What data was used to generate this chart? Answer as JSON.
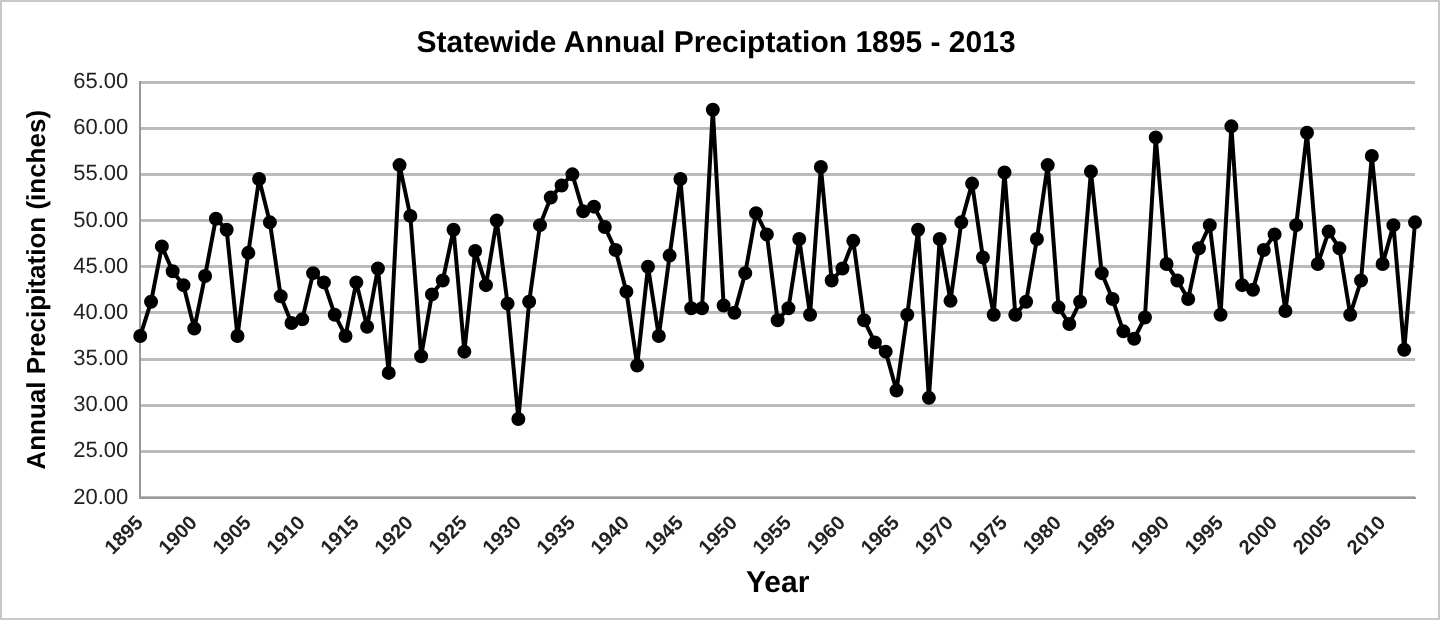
{
  "chart_data": {
    "type": "line",
    "title": "Statewide Annual Preciptation 1895 - 2013",
    "xlabel": "Year",
    "ylabel": "Annual Precipitation (inches)",
    "categories": [
      "1895",
      null,
      null,
      null,
      null,
      "1900",
      null,
      null,
      null,
      null,
      "1905",
      null,
      null,
      null,
      null,
      "1910",
      null,
      null,
      null,
      null,
      "1915",
      null,
      null,
      null,
      null,
      "1920",
      null,
      null,
      null,
      null,
      "1925",
      null,
      null,
      null,
      null,
      "1930",
      null,
      null,
      null,
      null,
      "1935",
      null,
      null,
      null,
      null,
      "1940",
      null,
      null,
      null,
      null,
      "1945",
      null,
      null,
      null,
      null,
      "1950",
      null,
      null,
      null,
      null,
      "1955",
      null,
      null,
      null,
      null,
      "1960",
      null,
      null,
      null,
      null,
      "1965",
      null,
      null,
      null,
      null,
      "1970",
      null,
      null,
      null,
      null,
      "1975",
      null,
      null,
      null,
      null,
      "1980",
      null,
      null,
      null,
      null,
      "1985",
      null,
      null,
      null,
      null,
      "1990",
      null,
      null,
      null,
      null,
      "1995",
      null,
      null,
      null,
      null,
      "2000",
      null,
      null,
      null,
      null,
      "2005",
      null,
      null,
      null,
      null,
      "2010",
      null,
      null,
      null
    ],
    "series": [
      {
        "color": "#000000",
        "values": [
          37.5,
          41.2,
          47.2,
          44.5,
          43,
          38.3,
          44,
          50.2,
          49,
          37.5,
          46.5,
          54.5,
          49.8,
          41.8,
          38.9,
          39.3,
          44.3,
          43.3,
          39.8,
          37.5,
          43.3,
          38.5,
          44.8,
          33.5,
          56,
          50.5,
          35.3,
          42,
          43.5,
          49,
          35.8,
          46.7,
          43,
          50,
          41,
          28.5,
          41.2,
          49.5,
          52.5,
          53.8,
          55,
          51,
          51.5,
          49.3,
          46.8,
          42.3,
          34.3,
          45,
          37.5,
          46.2,
          54.5,
          40.5,
          40.5,
          62,
          40.8,
          40,
          44.3,
          50.8,
          48.5,
          39.2,
          40.5,
          48,
          39.8,
          55.8,
          43.5,
          44.8,
          47.8,
          39.2,
          36.8,
          35.8,
          31.6,
          39.8,
          49,
          30.8,
          48,
          41.3,
          49.8,
          54,
          46,
          39.8,
          55.2,
          39.8,
          41.2,
          48,
          56,
          40.6,
          38.8,
          41.2,
          55.3,
          44.3,
          41.5,
          38,
          37.2,
          39.5,
          59,
          45.3,
          43.5,
          41.5,
          47,
          49.5,
          39.8,
          60.2,
          43,
          42.5,
          46.8,
          48.5,
          40.2,
          49.5,
          59.5,
          45.3,
          48.8,
          47,
          39.8,
          43.5,
          57,
          45.3,
          49.5,
          36,
          49.8
        ]
      }
    ],
    "ylim": [
      20,
      65
    ],
    "yticks": [
      {
        "value": 20,
        "label": "20.00"
      },
      {
        "value": 25,
        "label": "25.00"
      },
      {
        "value": 30,
        "label": "30.00"
      },
      {
        "value": 35,
        "label": "35.00"
      },
      {
        "value": 40,
        "label": "40.00"
      },
      {
        "value": 45,
        "label": "45.00"
      },
      {
        "value": 50,
        "label": "50.00"
      },
      {
        "value": 55,
        "label": "55.00"
      },
      {
        "value": 60,
        "label": "60.00"
      },
      {
        "value": 65,
        "label": "65.00"
      }
    ],
    "grid": "y",
    "legend": false,
    "marker": "circle",
    "line_style": "solid"
  }
}
